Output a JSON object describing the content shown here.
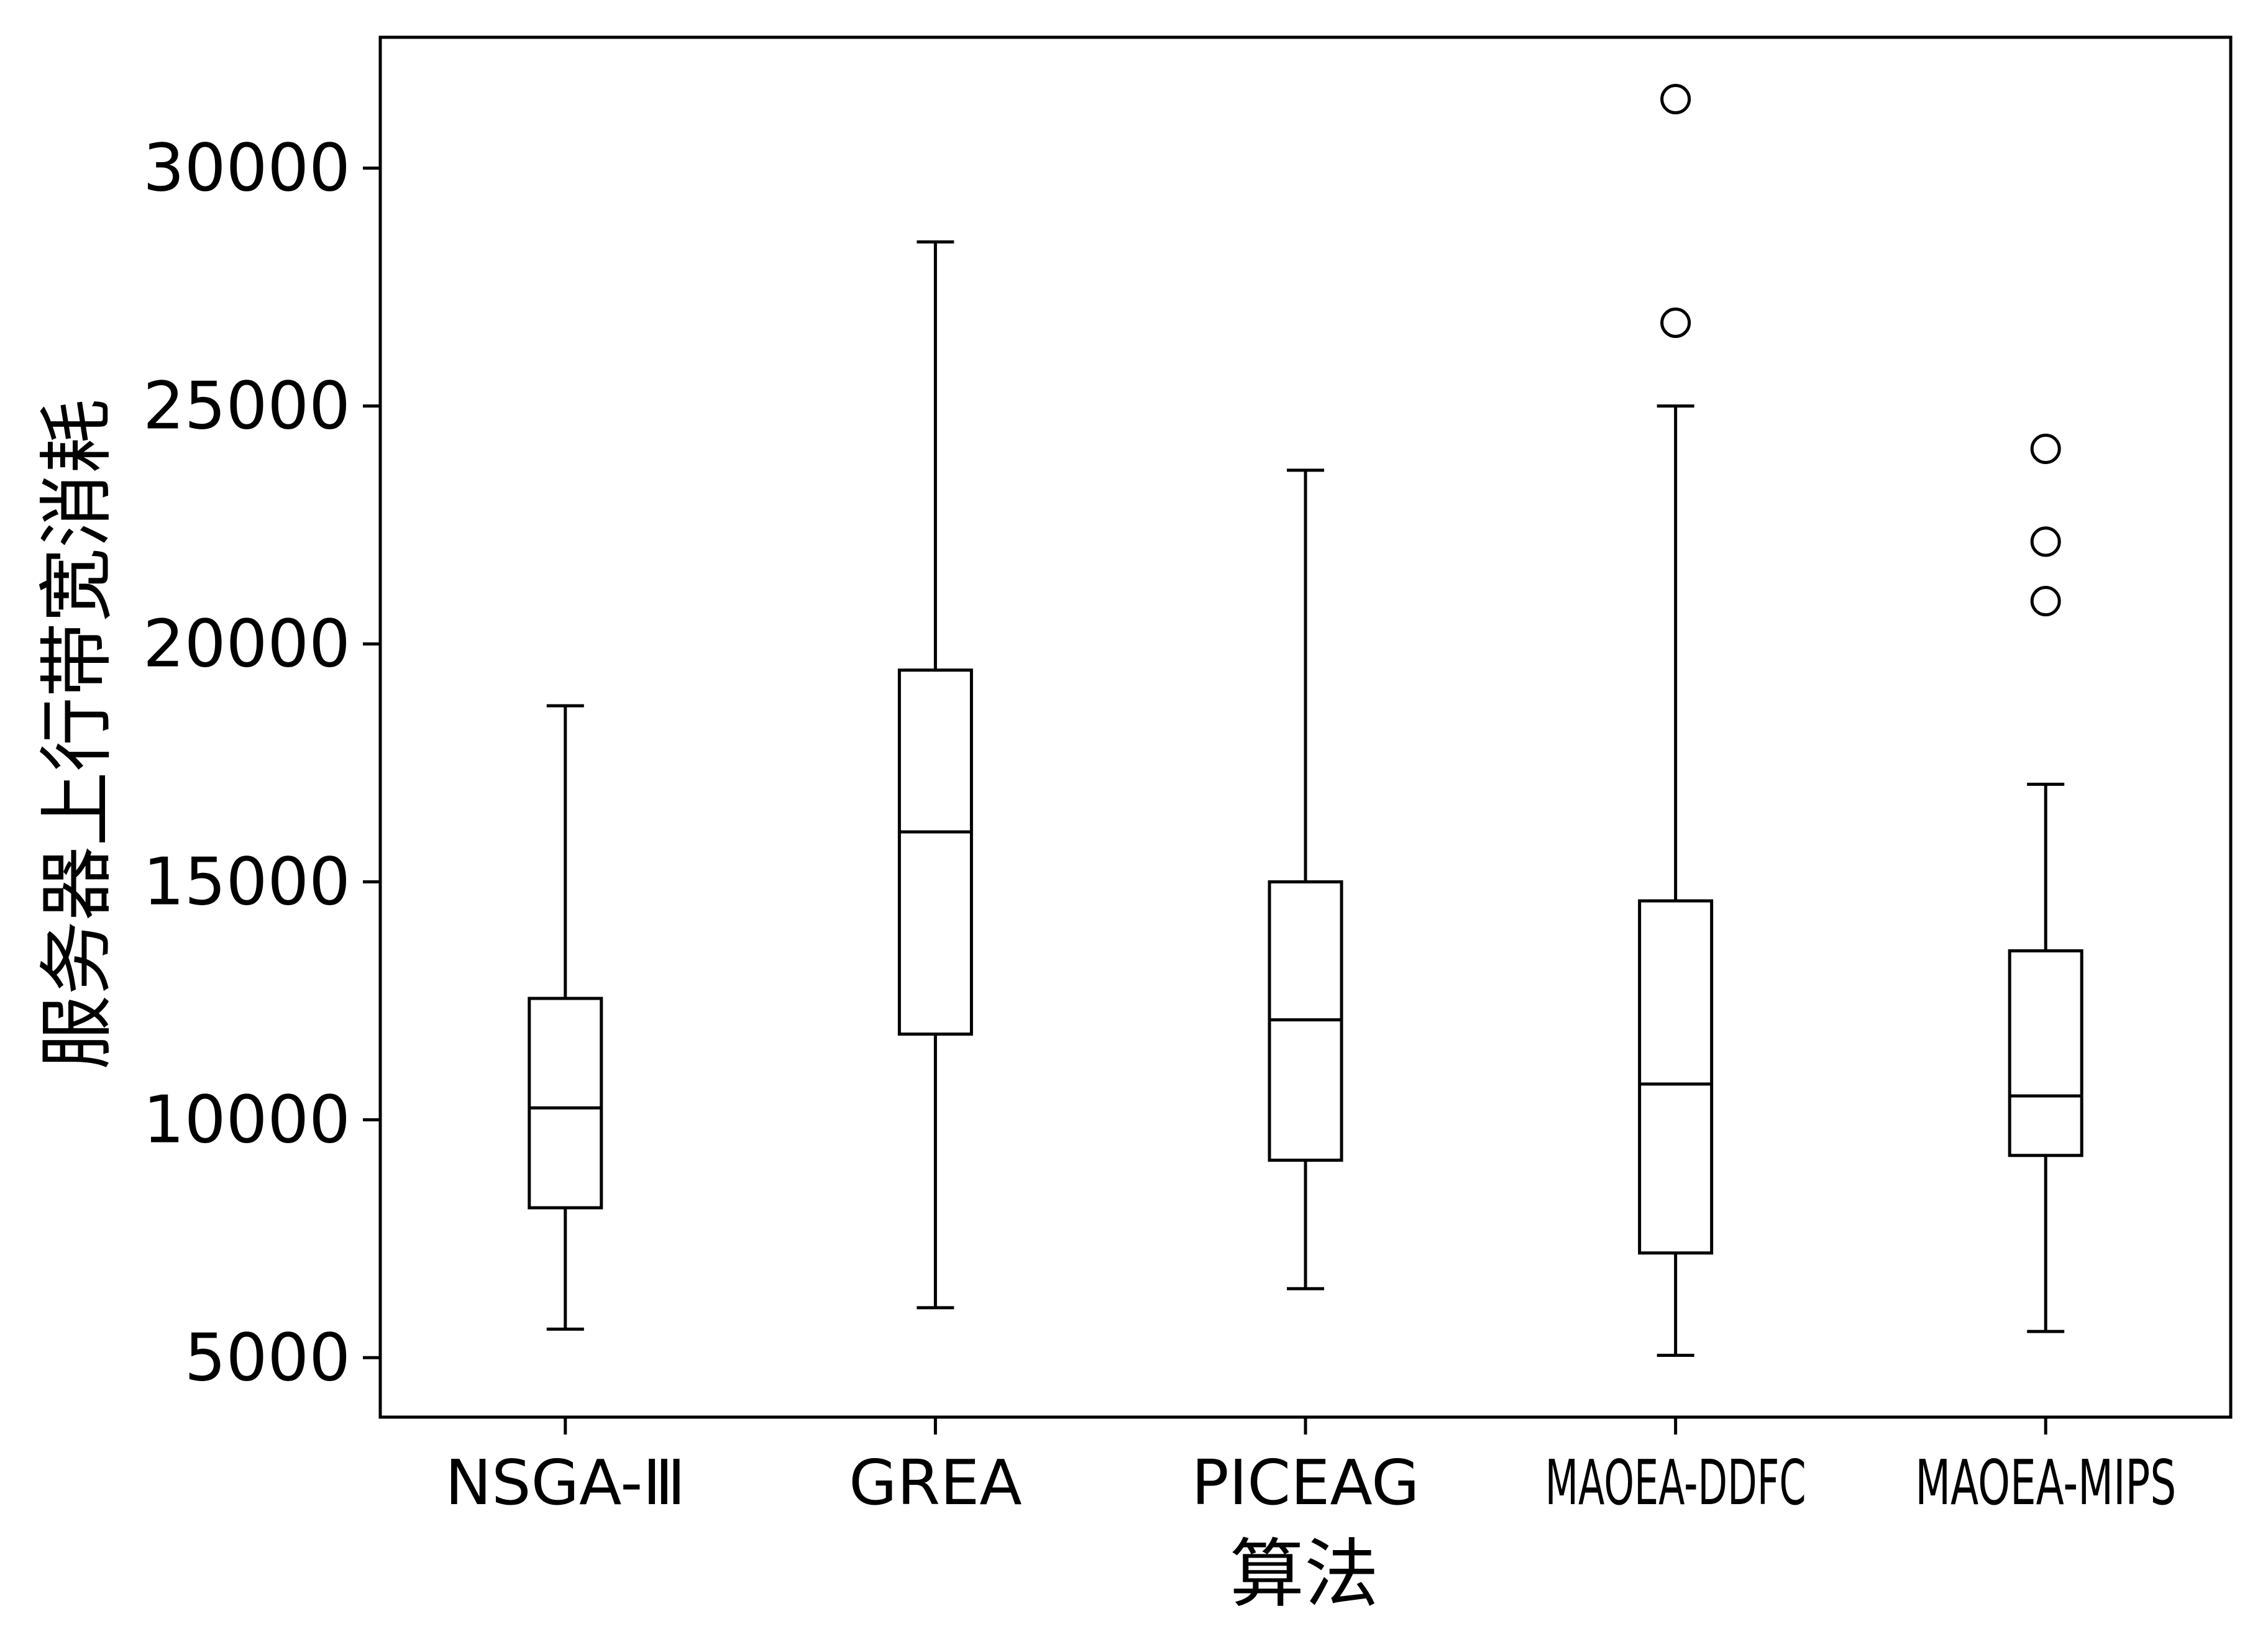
{
  "chart_data": {
    "type": "box",
    "title": "",
    "xlabel": "算法",
    "ylabel": "服务器上行带宽消耗",
    "ylim": [
      3750,
      32750
    ],
    "y_ticks": [
      5000,
      10000,
      15000,
      20000,
      25000,
      30000
    ],
    "y_tick_labels": [
      "5000",
      "10000",
      "15000",
      "20000",
      "25000",
      "30000"
    ],
    "categories": [
      "NSGA-Ⅲ",
      "GREA",
      "PICEAG",
      "MAOEA-DDFC",
      "MAOEA-MIPS"
    ],
    "boxes": [
      {
        "name": "NSGA-Ⅲ",
        "whisker_low": 5600,
        "q1": 8150,
        "median": 10250,
        "q3": 12550,
        "whisker_high": 18700,
        "outliers": []
      },
      {
        "name": "GREA",
        "whisker_low": 6050,
        "q1": 11800,
        "median": 16050,
        "q3": 19450,
        "whisker_high": 28450,
        "outliers": []
      },
      {
        "name": "PICEAG",
        "whisker_low": 6450,
        "q1": 9150,
        "median": 12100,
        "q3": 15000,
        "whisker_high": 23650,
        "outliers": []
      },
      {
        "name": "MAOEA-DDFC",
        "whisker_low": 5050,
        "q1": 7200,
        "median": 10750,
        "q3": 14600,
        "whisker_high": 25000,
        "outliers": [
          26750,
          31450
        ]
      },
      {
        "name": "MAOEA-MIPS",
        "whisker_low": 5550,
        "q1": 9250,
        "median": 10500,
        "q3": 13550,
        "whisker_high": 17050,
        "outliers": [
          20900,
          22150,
          24100
        ]
      }
    ],
    "grid": false,
    "legend": "none",
    "colors": {
      "line": "#000000",
      "box_fill": "#ffffff"
    }
  }
}
